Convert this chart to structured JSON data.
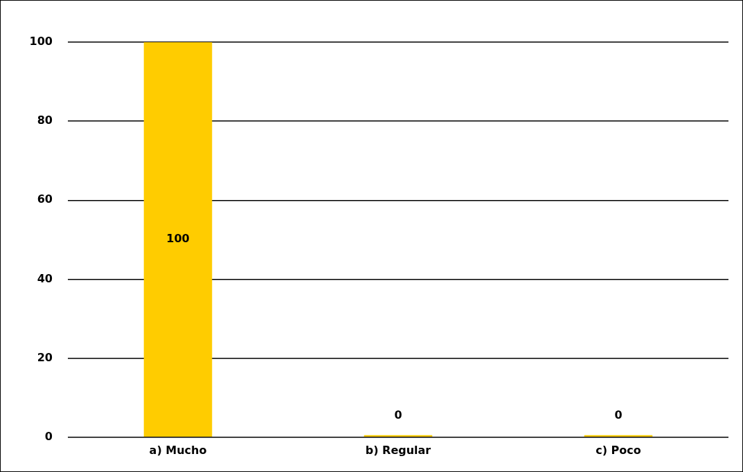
{
  "chart_data": {
    "type": "bar",
    "categories": [
      "a) Mucho",
      "b) Regular",
      "c) Poco"
    ],
    "values": [
      100,
      0,
      0
    ],
    "color": "#ffcc00",
    "ylim": [
      0,
      100
    ],
    "yticks": [
      0,
      20,
      40,
      60,
      80,
      100
    ],
    "grid": "y",
    "legend": false,
    "data_labels": true
  }
}
